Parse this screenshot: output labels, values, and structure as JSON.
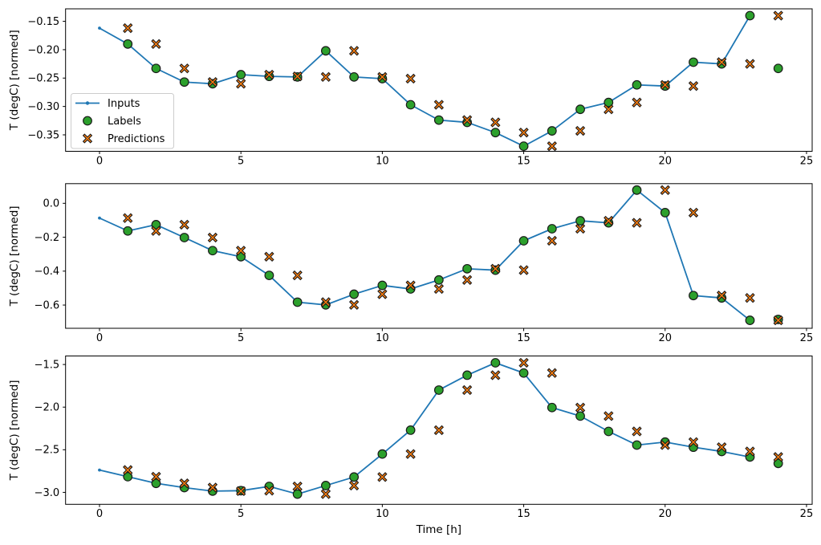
{
  "figure": {
    "xlabel": "Time [h]",
    "ylabel": "T (degC) [normed]",
    "colors": {
      "inputs": "#1f77b4",
      "labels": "#2ca02c",
      "predictions": "#ff7f0e",
      "marker_edge": "#1a1a1a",
      "spine": "#000000",
      "legend_border": "#cccccc",
      "background": "#ffffff"
    },
    "legend": {
      "items": [
        {
          "label": "Inputs",
          "marker": "line-dot",
          "color": "#1f77b4"
        },
        {
          "label": "Labels",
          "marker": "circle",
          "color": "#2ca02c"
        },
        {
          "label": "Predictions",
          "marker": "x",
          "color": "#ff7f0e"
        }
      ],
      "position": "center-left-of-first-subplot"
    }
  },
  "chart_data": [
    {
      "type": "line",
      "title": "",
      "xlabel": "",
      "ylabel": "T (degC) [normed]",
      "xlim": [
        -1.2,
        25.2
      ],
      "ylim": [
        -0.379,
        -0.128
      ],
      "xticks": [
        0,
        5,
        10,
        15,
        20,
        25
      ],
      "xtick_labels": [
        "0",
        "5",
        "10",
        "15",
        "20",
        "25"
      ],
      "yticks": [
        -0.15,
        -0.2,
        -0.25,
        -0.3,
        -0.35
      ],
      "ytick_labels": [
        "−0.15",
        "−0.20",
        "−0.25",
        "−0.30",
        "−0.35"
      ],
      "grid": false,
      "legend": true,
      "series": [
        {
          "name": "Inputs",
          "marker": "line-dot",
          "color": "#1f77b4",
          "x": [
            0,
            1,
            2,
            3,
            4,
            5,
            6,
            7,
            8,
            9,
            10,
            11,
            12,
            13,
            14,
            15,
            16,
            17,
            18,
            19,
            20,
            21,
            22,
            23
          ],
          "y": [
            -0.162,
            -0.19,
            -0.233,
            -0.257,
            -0.26,
            -0.244,
            -0.247,
            -0.248,
            -0.202,
            -0.248,
            -0.251,
            -0.297,
            -0.324,
            -0.328,
            -0.346,
            -0.37,
            -0.343,
            -0.305,
            -0.293,
            -0.262,
            -0.264,
            -0.222,
            -0.225,
            -0.14
          ]
        },
        {
          "name": "Labels",
          "marker": "circle",
          "color": "#2ca02c",
          "x": [
            1,
            2,
            3,
            4,
            5,
            6,
            7,
            8,
            9,
            10,
            11,
            12,
            13,
            14,
            15,
            16,
            17,
            18,
            19,
            20,
            21,
            22,
            23,
            24
          ],
          "y": [
            -0.19,
            -0.233,
            -0.257,
            -0.26,
            -0.244,
            -0.247,
            -0.248,
            -0.202,
            -0.248,
            -0.251,
            -0.297,
            -0.324,
            -0.328,
            -0.346,
            -0.37,
            -0.343,
            -0.305,
            -0.293,
            -0.262,
            -0.264,
            -0.222,
            -0.225,
            -0.14,
            -0.233
          ]
        },
        {
          "name": "Predictions",
          "marker": "x",
          "color": "#ff7f0e",
          "x": [
            1,
            2,
            3,
            4,
            5,
            6,
            7,
            8,
            9,
            10,
            11,
            12,
            13,
            14,
            15,
            16,
            17,
            18,
            19,
            20,
            21,
            22,
            23,
            24
          ],
          "y": [
            -0.162,
            -0.19,
            -0.233,
            -0.257,
            -0.26,
            -0.244,
            -0.247,
            -0.248,
            -0.202,
            -0.248,
            -0.251,
            -0.297,
            -0.324,
            -0.328,
            -0.346,
            -0.37,
            -0.343,
            -0.305,
            -0.293,
            -0.262,
            -0.264,
            -0.222,
            -0.225,
            -0.14
          ]
        }
      ]
    },
    {
      "type": "line",
      "title": "",
      "xlabel": "",
      "ylabel": "T (degC) [normed]",
      "xlim": [
        -1.2,
        25.2
      ],
      "ylim": [
        -0.737,
        0.116
      ],
      "xticks": [
        0,
        5,
        10,
        15,
        20,
        25
      ],
      "xtick_labels": [
        "0",
        "5",
        "10",
        "15",
        "20",
        "25"
      ],
      "yticks": [
        0.0,
        -0.2,
        -0.4,
        -0.6
      ],
      "ytick_labels": [
        "0.0",
        "−0.2",
        "−0.4",
        "−0.6"
      ],
      "grid": false,
      "legend": false,
      "series": [
        {
          "name": "Inputs",
          "marker": "line-dot",
          "color": "#1f77b4",
          "x": [
            0,
            1,
            2,
            3,
            4,
            5,
            6,
            7,
            8,
            9,
            10,
            11,
            12,
            13,
            14,
            15,
            16,
            17,
            18,
            19,
            20,
            21,
            22,
            23
          ],
          "y": [
            -0.087,
            -0.163,
            -0.126,
            -0.202,
            -0.279,
            -0.315,
            -0.425,
            -0.583,
            -0.599,
            -0.536,
            -0.484,
            -0.505,
            -0.452,
            -0.386,
            -0.394,
            -0.221,
            -0.15,
            -0.103,
            -0.115,
            0.078,
            -0.055,
            -0.544,
            -0.558,
            -0.69
          ]
        },
        {
          "name": "Labels",
          "marker": "circle",
          "color": "#2ca02c",
          "x": [
            1,
            2,
            3,
            4,
            5,
            6,
            7,
            8,
            9,
            10,
            11,
            12,
            13,
            14,
            15,
            16,
            17,
            18,
            19,
            20,
            21,
            22,
            23,
            24
          ],
          "y": [
            -0.163,
            -0.126,
            -0.202,
            -0.279,
            -0.315,
            -0.425,
            -0.583,
            -0.599,
            -0.536,
            -0.484,
            -0.505,
            -0.452,
            -0.386,
            -0.394,
            -0.221,
            -0.15,
            -0.103,
            -0.115,
            0.078,
            -0.055,
            -0.544,
            -0.558,
            -0.69,
            -0.685
          ]
        },
        {
          "name": "Predictions",
          "marker": "x",
          "color": "#ff7f0e",
          "x": [
            1,
            2,
            3,
            4,
            5,
            6,
            7,
            8,
            9,
            10,
            11,
            12,
            13,
            14,
            15,
            16,
            17,
            18,
            19,
            20,
            21,
            22,
            23,
            24
          ],
          "y": [
            -0.087,
            -0.163,
            -0.126,
            -0.202,
            -0.279,
            -0.315,
            -0.425,
            -0.583,
            -0.599,
            -0.536,
            -0.484,
            -0.505,
            -0.452,
            -0.386,
            -0.394,
            -0.221,
            -0.15,
            -0.103,
            -0.115,
            0.078,
            -0.055,
            -0.544,
            -0.558,
            -0.69
          ]
        }
      ]
    },
    {
      "type": "line",
      "title": "",
      "xlabel": "Time [h]",
      "ylabel": "T (degC) [normed]",
      "xlim": [
        -1.2,
        25.2
      ],
      "ylim": [
        -3.14,
        -1.4
      ],
      "xticks": [
        0,
        5,
        10,
        15,
        20,
        25
      ],
      "xtick_labels": [
        "0",
        "5",
        "10",
        "15",
        "20",
        "25"
      ],
      "yticks": [
        -1.5,
        -2.0,
        -2.5,
        -3.0
      ],
      "ytick_labels": [
        "−1.5",
        "−2.0",
        "−2.5",
        "−3.0"
      ],
      "grid": false,
      "legend": false,
      "series": [
        {
          "name": "Inputs",
          "marker": "line-dot",
          "color": "#1f77b4",
          "x": [
            0,
            1,
            2,
            3,
            4,
            5,
            6,
            7,
            8,
            9,
            10,
            11,
            12,
            13,
            14,
            15,
            16,
            17,
            18,
            19,
            20,
            21,
            22,
            23
          ],
          "y": [
            -2.738,
            -2.816,
            -2.894,
            -2.944,
            -2.985,
            -2.98,
            -2.93,
            -3.02,
            -2.92,
            -2.82,
            -2.55,
            -2.27,
            -1.8,
            -1.625,
            -1.48,
            -1.6,
            -2.005,
            -2.105,
            -2.285,
            -2.445,
            -2.41,
            -2.47,
            -2.52,
            -2.585
          ]
        },
        {
          "name": "Labels",
          "marker": "circle",
          "color": "#2ca02c",
          "x": [
            1,
            2,
            3,
            4,
            5,
            6,
            7,
            8,
            9,
            10,
            11,
            12,
            13,
            14,
            15,
            16,
            17,
            18,
            19,
            20,
            21,
            22,
            23,
            24
          ],
          "y": [
            -2.816,
            -2.894,
            -2.944,
            -2.985,
            -2.98,
            -2.93,
            -3.02,
            -2.92,
            -2.82,
            -2.55,
            -2.27,
            -1.8,
            -1.625,
            -1.48,
            -1.6,
            -2.005,
            -2.105,
            -2.285,
            -2.445,
            -2.41,
            -2.47,
            -2.52,
            -2.585,
            -2.66
          ]
        },
        {
          "name": "Predictions",
          "marker": "x",
          "color": "#ff7f0e",
          "x": [
            1,
            2,
            3,
            4,
            5,
            6,
            7,
            8,
            9,
            10,
            11,
            12,
            13,
            14,
            15,
            16,
            17,
            18,
            19,
            20,
            21,
            22,
            23,
            24
          ],
          "y": [
            -2.738,
            -2.816,
            -2.894,
            -2.944,
            -2.985,
            -2.98,
            -2.93,
            -3.02,
            -2.92,
            -2.82,
            -2.55,
            -2.27,
            -1.8,
            -1.625,
            -1.48,
            -1.6,
            -2.005,
            -2.105,
            -2.285,
            -2.445,
            -2.41,
            -2.47,
            -2.52,
            -2.585
          ]
        }
      ]
    }
  ]
}
